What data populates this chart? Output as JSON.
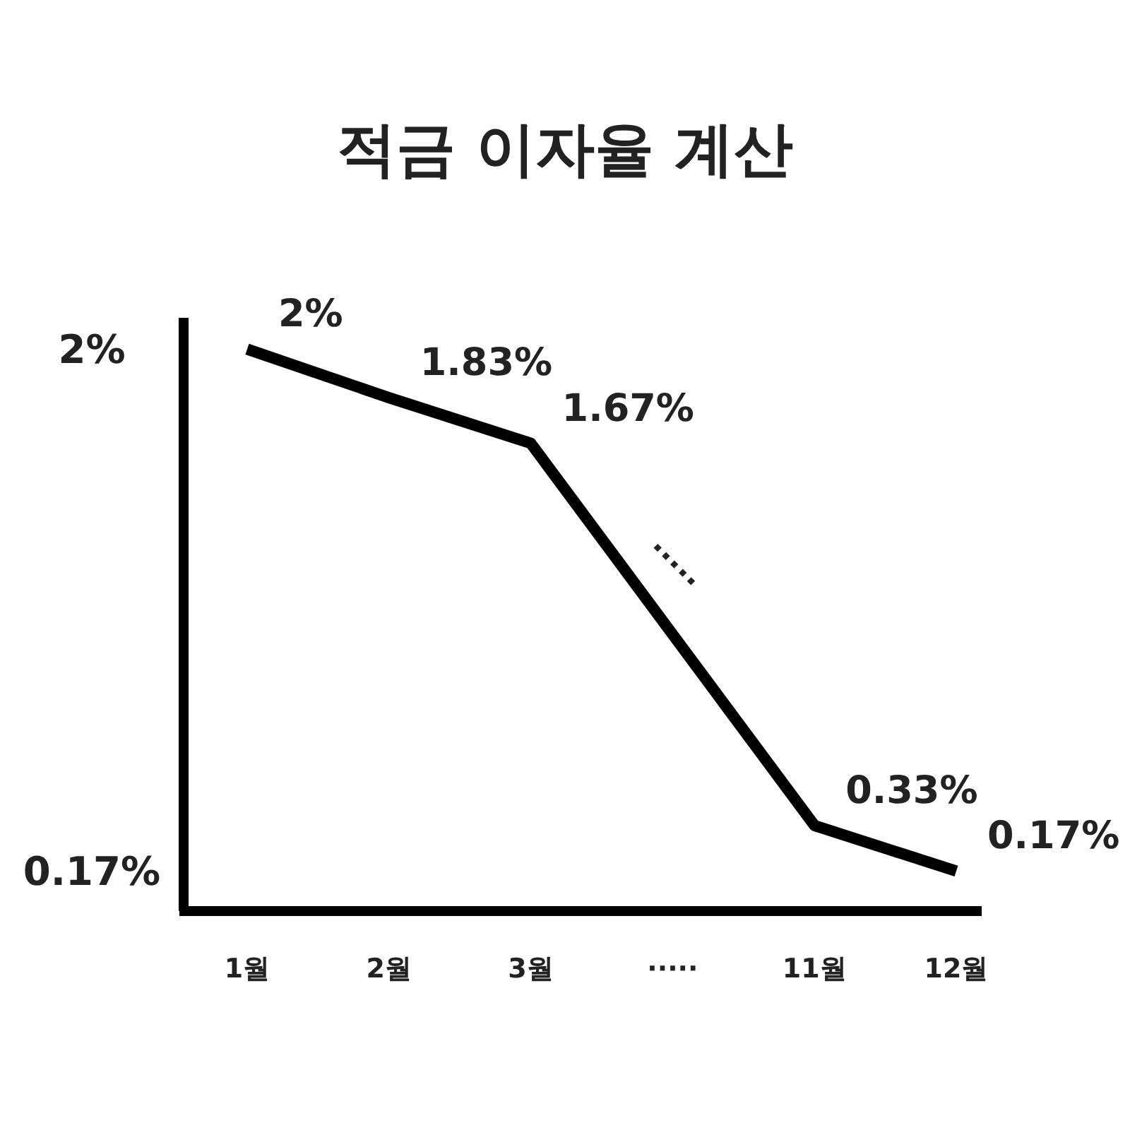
{
  "chart_data": {
    "type": "line",
    "title": "적금 이자율 계산",
    "categories": [
      "1월",
      "2월",
      "3월",
      "·····",
      "11월",
      "12월"
    ],
    "values": [
      2,
      1.83,
      1.67,
      null,
      0.33,
      0.17
    ],
    "value_labels": [
      "2%",
      "1.83%",
      "1.67%",
      null,
      "0.33%",
      "0.17%"
    ],
    "color": "#000000",
    "ylim": [
      0.03,
      2.11
    ],
    "yticks": [
      {
        "value": 2,
        "label": "2%"
      },
      {
        "value": 0.17,
        "label": "0.17%"
      }
    ],
    "annotations": [
      "·····"
    ],
    "grid": false
  }
}
